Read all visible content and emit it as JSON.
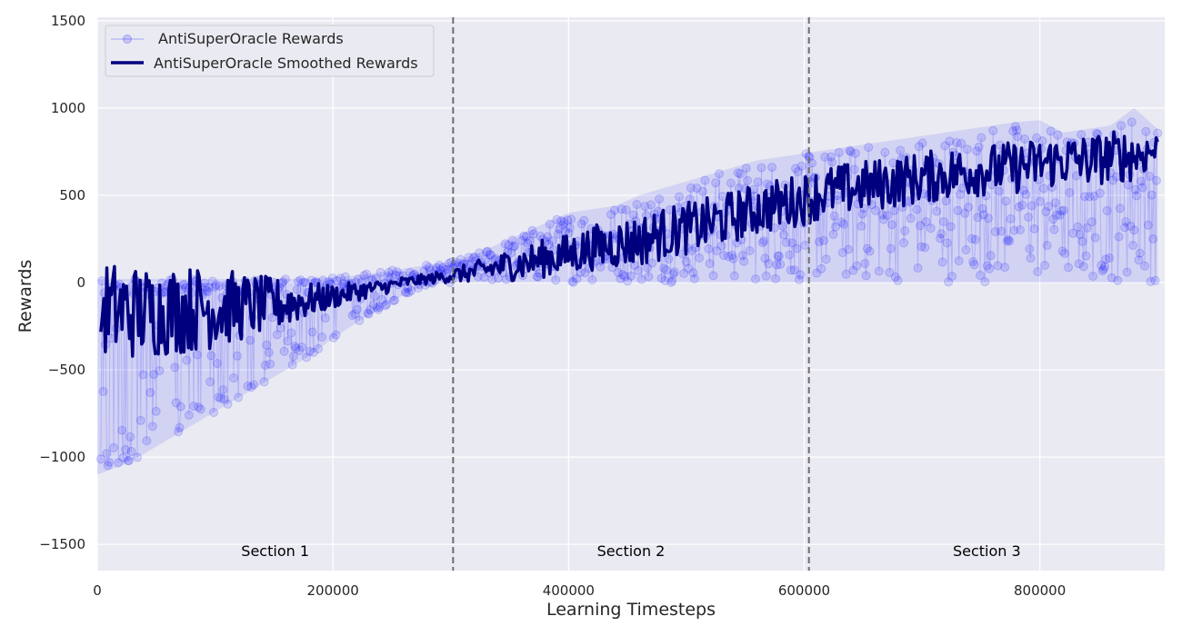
{
  "chart_data": {
    "type": "line",
    "title": "",
    "xlabel": "Learning Timesteps",
    "ylabel": "Rewards",
    "xlim": [
      0,
      906000
    ],
    "ylim": [
      -1650,
      1520
    ],
    "xticks": [
      0,
      200000,
      400000,
      600000,
      800000
    ],
    "xtick_labels": [
      "0",
      "200000",
      "400000",
      "600000",
      "800000"
    ],
    "yticks": [
      1500,
      1000,
      500,
      0,
      -500,
      -1000,
      -1500
    ],
    "ytick_labels": [
      "1500",
      "1000",
      "500",
      "0",
      "−500",
      "−1000",
      "−1500"
    ],
    "grid": true,
    "legend": "top-left",
    "colors": {
      "background": "#eaeaf2",
      "grid": "#ffffff",
      "raw": "#0000ff",
      "smoothed": "#00007f",
      "vline": "#6e6e6e"
    },
    "vlines": [
      302000,
      604000
    ],
    "annotations": [
      {
        "text": "Section 1",
        "x": 151000,
        "y": -1540
      },
      {
        "text": "Section 2",
        "x": 453000,
        "y": -1540
      },
      {
        "text": "Section 3",
        "x": 755000,
        "y": -1540
      }
    ],
    "series": [
      {
        "name": "AntiSuperOracle Rewards",
        "style": "markers",
        "x": [
          0,
          20000,
          40000,
          60000,
          80000,
          100000,
          120000,
          140000,
          160000,
          180000,
          200000,
          220000,
          240000,
          260000,
          280000,
          300000,
          320000,
          340000,
          360000,
          380000,
          400000,
          420000,
          440000,
          460000,
          480000,
          500000,
          520000,
          540000,
          560000,
          580000,
          600000,
          620000,
          640000,
          660000,
          680000,
          700000,
          720000,
          740000,
          760000,
          780000,
          800000,
          820000,
          840000,
          860000,
          880000,
          900000
        ],
        "lower": [
          -1100,
          -1050,
          -980,
          -900,
          -820,
          -740,
          -660,
          -580,
          -500,
          -420,
          -320,
          -230,
          -150,
          -70,
          -10,
          0,
          0,
          0,
          0,
          0,
          0,
          0,
          0,
          0,
          0,
          0,
          0,
          0,
          0,
          0,
          0,
          0,
          0,
          0,
          0,
          0,
          0,
          0,
          0,
          0,
          0,
          0,
          0,
          0,
          0,
          0
        ],
        "upper": [
          20,
          20,
          20,
          20,
          20,
          20,
          20,
          20,
          20,
          20,
          30,
          40,
          60,
          80,
          100,
          120,
          160,
          220,
          280,
          340,
          400,
          420,
          440,
          500,
          540,
          580,
          620,
          660,
          700,
          720,
          740,
          760,
          780,
          800,
          820,
          840,
          860,
          880,
          900,
          920,
          930,
          860,
          880,
          900,
          1000,
          880
        ]
      },
      {
        "name": "AntiSuperOracle Smoothed Rewards",
        "style": "line",
        "x": [
          0,
          20000,
          40000,
          60000,
          80000,
          100000,
          120000,
          140000,
          160000,
          180000,
          200000,
          220000,
          240000,
          260000,
          280000,
          300000,
          320000,
          340000,
          360000,
          380000,
          400000,
          420000,
          440000,
          460000,
          480000,
          500000,
          520000,
          540000,
          560000,
          580000,
          600000,
          620000,
          640000,
          660000,
          680000,
          700000,
          720000,
          740000,
          760000,
          780000,
          800000,
          820000,
          840000,
          860000,
          880000,
          900000
        ],
        "mid": [
          -150,
          -160,
          -170,
          -160,
          -150,
          -140,
          -140,
          -130,
          -120,
          -100,
          -80,
          -50,
          -30,
          0,
          20,
          40,
          60,
          90,
          110,
          140,
          160,
          200,
          220,
          240,
          280,
          310,
          340,
          380,
          420,
          450,
          480,
          520,
          540,
          560,
          580,
          600,
          620,
          640,
          650,
          660,
          680,
          700,
          700,
          720,
          730,
          760
        ],
        "amp": [
          280,
          280,
          270,
          260,
          250,
          240,
          200,
          170,
          140,
          100,
          70,
          55,
          45,
          35,
          30,
          40,
          60,
          80,
          100,
          110,
          120,
          130,
          140,
          150,
          150,
          150,
          150,
          150,
          150,
          150,
          150,
          150,
          150,
          150,
          150,
          150,
          150,
          150,
          150,
          150,
          150,
          150,
          150,
          150,
          150,
          100
        ]
      }
    ]
  }
}
